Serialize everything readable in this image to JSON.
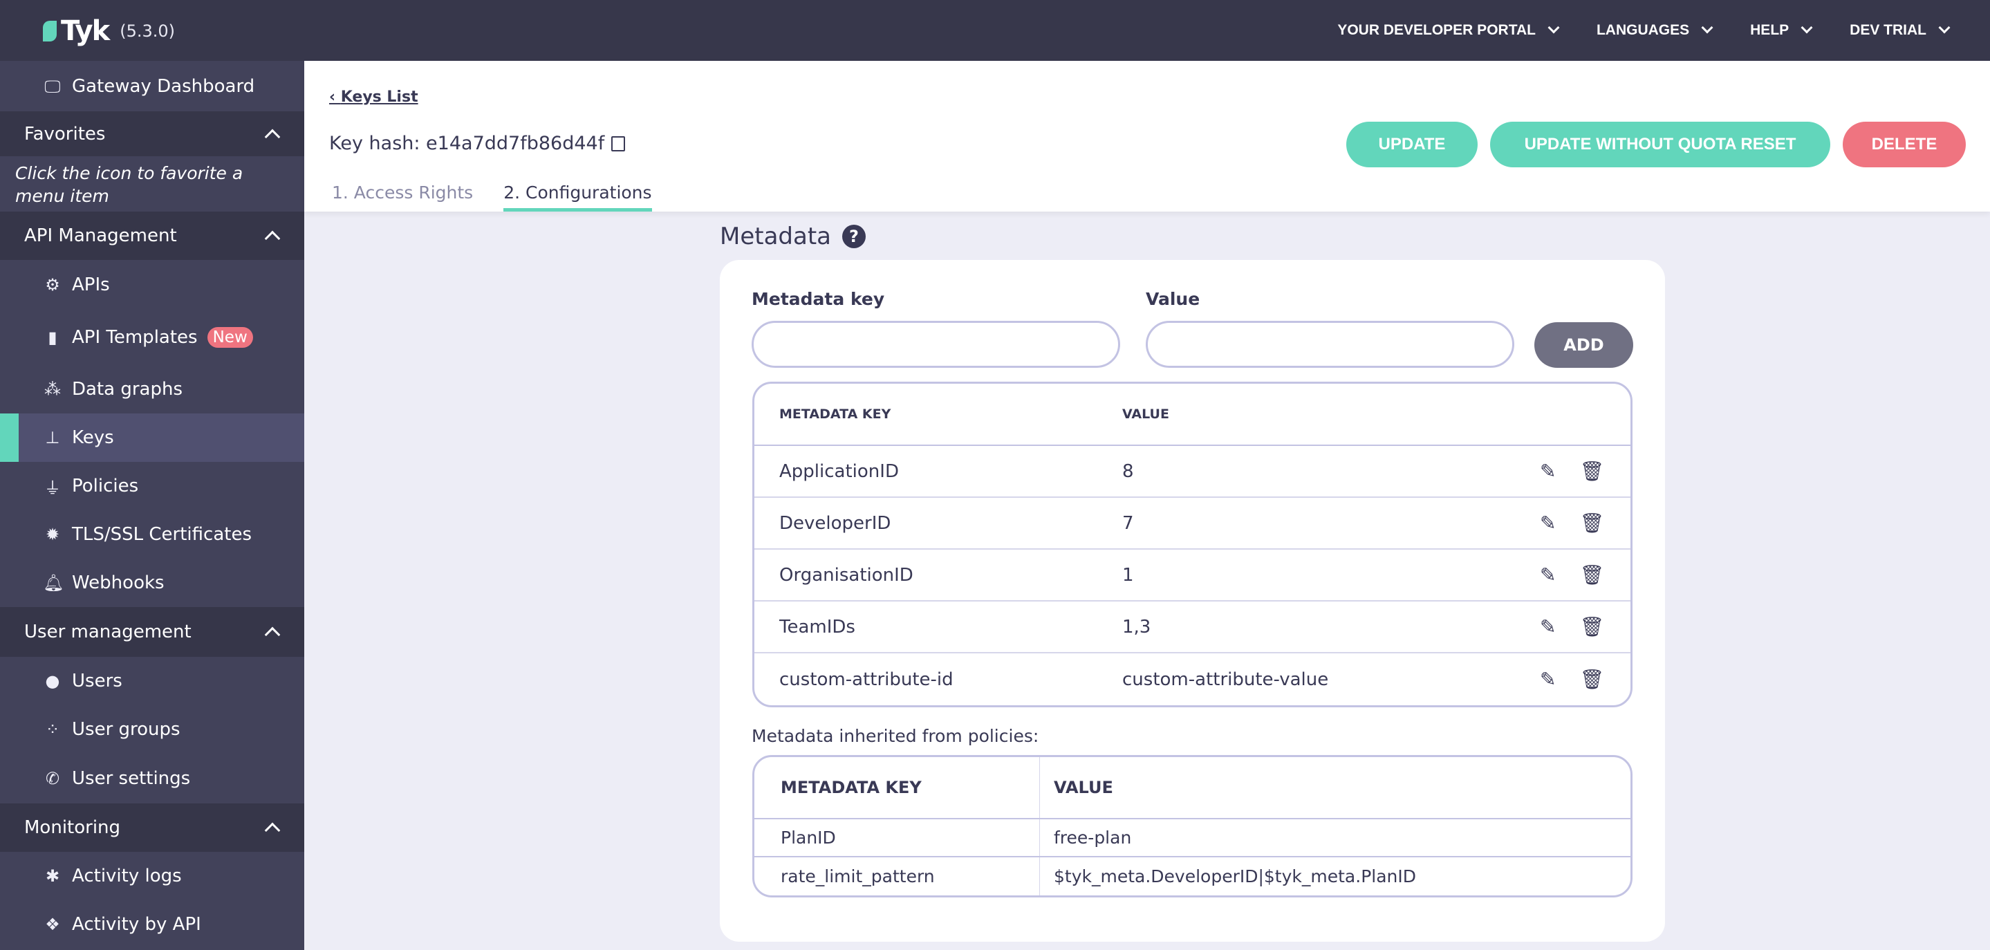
{
  "topbar": {
    "logo": "Tyk",
    "version": "(5.3.0)",
    "nav": [
      "YOUR DEVELOPER PORTAL",
      "LANGUAGES",
      "HELP",
      "DEV TRIAL"
    ]
  },
  "sidebar": {
    "dashboard": "Gateway Dashboard",
    "favorites": "Favorites",
    "favorites_hint": "Click the icon to favorite a menu item",
    "api_management": "API Management",
    "apis": "APIs",
    "api_templates": "API Templates",
    "new_badge": "New",
    "data_graphs": "Data graphs",
    "keys": "Keys",
    "policies": "Policies",
    "tls": "TLS/SSL Certificates",
    "webhooks": "Webhooks",
    "user_management": "User management",
    "users": "Users",
    "user_groups": "User groups",
    "user_settings": "User settings",
    "monitoring": "Monitoring",
    "activity_logs": "Activity logs",
    "activity_by_api": "Activity by API",
    "accent": "#62d6bb"
  },
  "header": {
    "back": "Keys List",
    "key_hash": "Key hash: e14a7dd7fb86d44f",
    "tabs": [
      "1. Access Rights",
      "2. Configurations"
    ],
    "update": "UPDATE",
    "update_no_quota": "UPDATE WITHOUT QUOTA RESET",
    "delete": "DELETE"
  },
  "metadata": {
    "title": "Metadata",
    "key_label": "Metadata key",
    "value_label": "Value",
    "key_value": "",
    "value_value": "",
    "add": "ADD",
    "columns": [
      "METADATA KEY",
      "VALUE"
    ],
    "rows": [
      [
        "ApplicationID",
        "8"
      ],
      [
        "DeveloperID",
        "7"
      ],
      [
        "OrganisationID",
        "1"
      ],
      [
        "TeamIDs",
        "1,3"
      ],
      [
        "custom-attribute-id",
        "custom-attribute-value"
      ]
    ],
    "inherited_label": "Metadata inherited from policies:",
    "inherited_columns": [
      "METADATA KEY",
      "VALUE"
    ],
    "inherited_rows": [
      [
        "PlanID",
        "free-plan"
      ],
      [
        "rate_limit_pattern",
        "$tyk_meta.DeveloperID|$tyk_meta.PlanID"
      ]
    ]
  }
}
